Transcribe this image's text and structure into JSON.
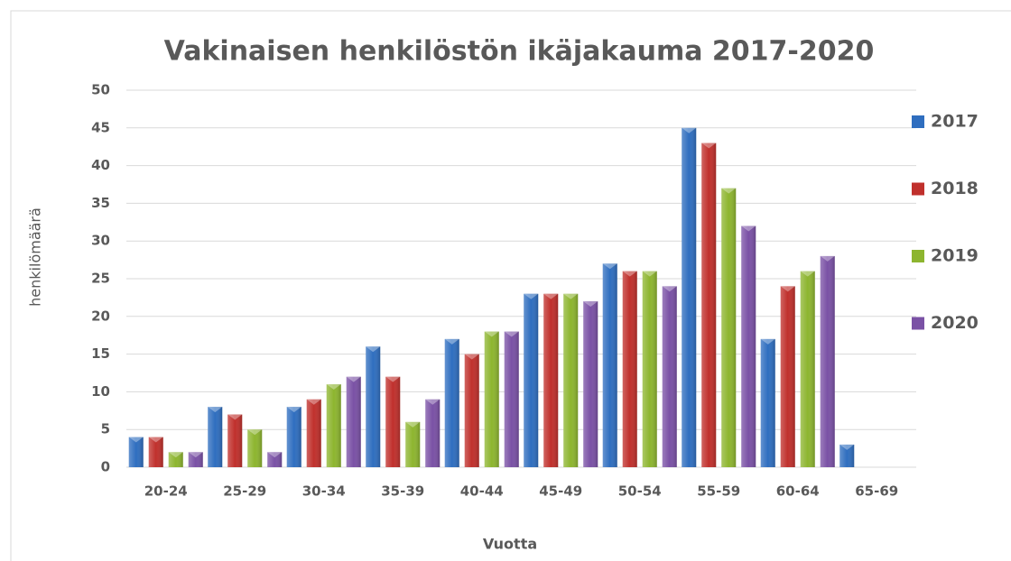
{
  "chart_data": {
    "type": "bar",
    "title": "Vakinaisen henkilöstön ikäjakauma 2017-2020",
    "x_label": "Vuotta",
    "y_label": "henkilömäärä",
    "categories": [
      "20-24",
      "25-29",
      "30-34",
      "35-39",
      "40-44",
      "45-49",
      "50-54",
      "55-59",
      "60-64",
      "65-69"
    ],
    "series": [
      {
        "name": "2017",
        "color": "#2f6ebf",
        "values": [
          4,
          8,
          8,
          16,
          17,
          23,
          27,
          45,
          17,
          3
        ]
      },
      {
        "name": "2018",
        "color": "#c0302c",
        "values": [
          4,
          7,
          9,
          12,
          15,
          23,
          26,
          43,
          24,
          null
        ]
      },
      {
        "name": "2019",
        "color": "#8db52f",
        "values": [
          2,
          5,
          11,
          6,
          18,
          23,
          26,
          37,
          26,
          null
        ]
      },
      {
        "name": "2020",
        "color": "#7a51a5",
        "values": [
          2,
          2,
          12,
          9,
          18,
          22,
          24,
          32,
          28,
          null
        ]
      }
    ],
    "ylim": [
      0,
      50
    ],
    "yticks": [
      0,
      5,
      10,
      15,
      20,
      25,
      30,
      35,
      40,
      45,
      50
    ],
    "grid": true,
    "legend": "right"
  }
}
